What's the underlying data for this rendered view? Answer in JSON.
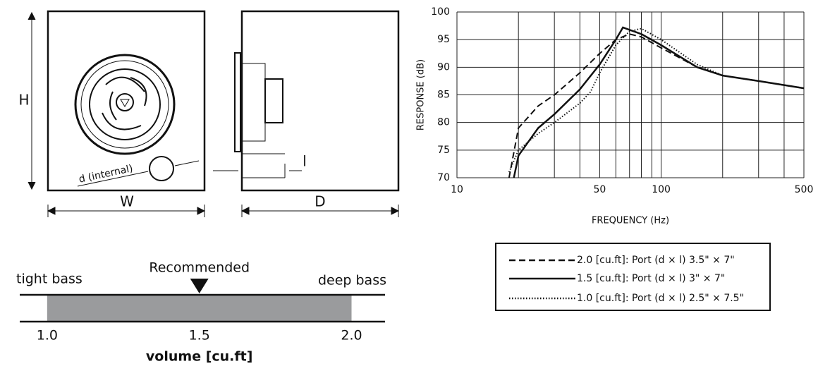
{
  "chart_data": [
    {
      "type": "line",
      "xlabel": "FREQUENCY (Hz)",
      "ylabel": "RESPONSE (dB)",
      "log_x": true,
      "grid": true,
      "xlim": [
        10,
        500
      ],
      "ylim": [
        70,
        100
      ],
      "xticks": [
        10,
        50,
        100,
        500
      ],
      "yticks": [
        70,
        75,
        80,
        85,
        90,
        95,
        100
      ],
      "xgrid": [
        20,
        30,
        40,
        60,
        70,
        80,
        90,
        200,
        300,
        400
      ],
      "series": [
        {
          "name": "2.0 [cu.ft]: Port (d × l) 3.5\"  × 7\"",
          "color": "#111",
          "dash": "dashed",
          "x": [
            18,
            20,
            25,
            30,
            40,
            50,
            60,
            70,
            80,
            100,
            150,
            200,
            300,
            500
          ],
          "values": [
            70,
            79,
            83,
            85,
            89,
            92.5,
            95,
            96,
            95.5,
            93.5,
            90,
            88.5,
            87.5,
            86.2
          ]
        },
        {
          "name": "1.5 [cu.ft]: Port (d × l) 3\"  × 7\"",
          "color": "#111",
          "dash": "solid",
          "x": [
            19,
            20,
            25,
            30,
            40,
            50,
            60,
            65,
            80,
            100,
            150,
            200,
            300,
            500
          ],
          "values": [
            70,
            74,
            79,
            81.5,
            86,
            90.5,
            95,
            97.2,
            96,
            94,
            90,
            88.5,
            87.5,
            86.2
          ]
        },
        {
          "name": "1.0 [cu.ft]: Port (d × l) 2.5\"  × 7.5\"",
          "color": "#111",
          "dash": "dotted",
          "x": [
            18,
            20,
            25,
            30,
            40,
            45,
            50,
            60,
            70,
            80,
            100,
            150,
            200,
            300,
            500
          ],
          "values": [
            71,
            75,
            78,
            80,
            83.5,
            85.5,
            89,
            94,
            96.5,
            97,
            95,
            90.5,
            88.5,
            87.5,
            86.2
          ]
        }
      ]
    },
    {
      "type": "range",
      "xlabel": "volume [cu.ft]",
      "left_label": "tight bass",
      "right_label": "deep bass",
      "color": "#9a9b9d",
      "xlim": [
        0.91,
        2.11
      ],
      "range": [
        1,
        2
      ],
      "marker": {
        "value": 1.5,
        "label": "Recommended"
      },
      "xticks": [
        {
          "value": 1,
          "label": "1.0"
        },
        {
          "value": 1.5,
          "label": "1.5"
        },
        {
          "value": 2,
          "label": "2.0"
        }
      ]
    }
  ],
  "diagram": {
    "height": "H",
    "width": "W",
    "depth": "D",
    "port_length": "l",
    "port_diameter": "d (internal)"
  }
}
